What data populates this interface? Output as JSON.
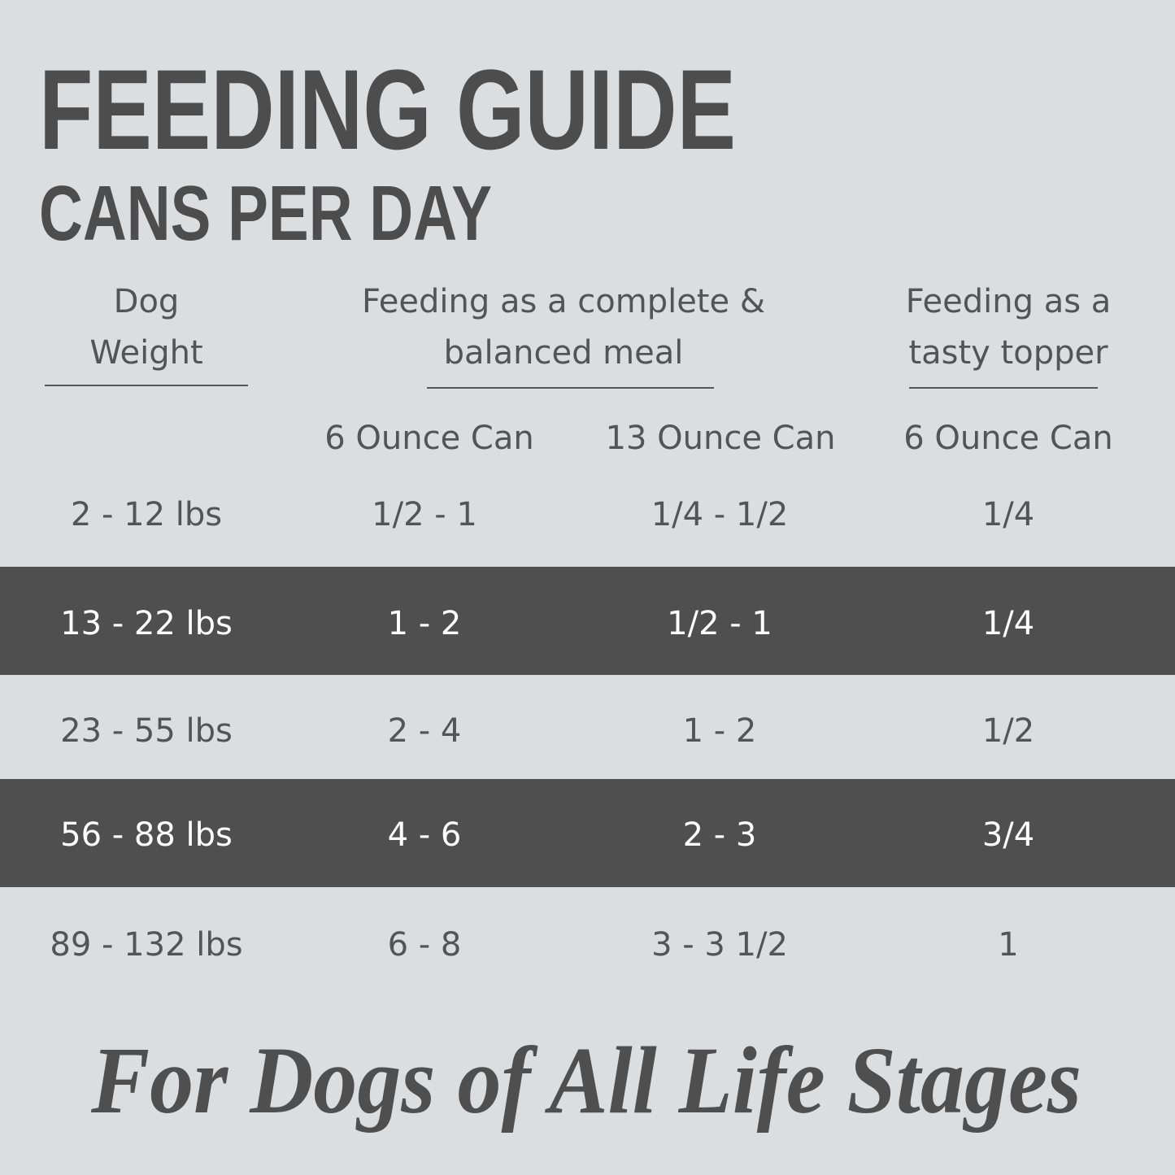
{
  "header": {
    "title": "FEEDING GUIDE",
    "subtitle": "CANS PER DAY"
  },
  "table": {
    "group_headers": [
      [
        "Dog",
        "Weight"
      ],
      [
        "Feeding as a complete &",
        "balanced meal"
      ],
      [
        "Feeding as a",
        "tasty topper"
      ]
    ],
    "column_headers": [
      "6 Ounce Can",
      "13 Ounce Can",
      "6 Ounce Can"
    ],
    "rows": [
      [
        "2 - 12 lbs",
        "1/2 - 1",
        "1/4 - 1/2",
        "1/4"
      ],
      [
        "13 - 22 lbs",
        "1 - 2",
        "1/2 - 1",
        "1/4"
      ],
      [
        "23 - 55 lbs",
        "2 - 4",
        "1 - 2",
        "1/2"
      ],
      [
        "56 - 88 lbs",
        "4 - 6",
        "2 - 3",
        "3/4"
      ],
      [
        "89 - 132 lbs",
        "6 - 8",
        "3 - 3 1/2",
        "1"
      ]
    ]
  },
  "footer": {
    "tagline": "For Dogs of All Life Stages"
  }
}
